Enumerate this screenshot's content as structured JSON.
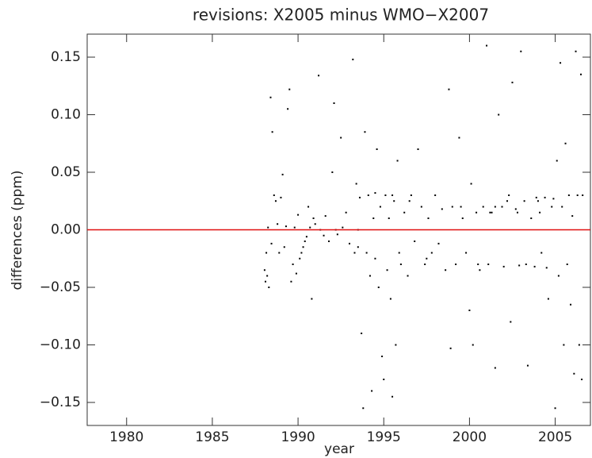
{
  "chart_data": {
    "type": "scatter",
    "title": "revisions: X2005 minus WMO−X2007",
    "x_label": "year",
    "y_label": "differences (ppm)",
    "xlim": [
      1977.7,
      2007.1
    ],
    "ylim": [
      -0.17,
      0.17
    ],
    "xticks": [
      1980,
      1985,
      1990,
      1995,
      2000,
      2005
    ],
    "yticks": [
      {
        "value": -0.15,
        "label": "−0.15"
      },
      {
        "value": -0.1,
        "label": "−0.10"
      },
      {
        "value": -0.05,
        "label": "−0.05"
      },
      {
        "value": 0,
        "label": "0.00"
      },
      0.05,
      {
        "value": 0.1,
        "label": "0.10"
      },
      0.15
    ],
    "color": "#000000",
    "reference_line": {
      "value": 0,
      "color": "#e01010"
    },
    "x": [
      1988.05,
      1988.1,
      1988.15,
      1988.2,
      1988.25,
      1988.3,
      1988.4,
      1988.45,
      1988.5,
      1988.6,
      1988.7,
      1988.8,
      1988.9,
      1989.0,
      1989.1,
      1989.2,
      1989.3,
      1989.4,
      1989.5,
      1989.6,
      1989.7,
      1989.8,
      1989.9,
      1990.0,
      1990.1,
      1990.2,
      1990.3,
      1990.4,
      1990.5,
      1990.6,
      1990.7,
      1990.8,
      1990.9,
      1991.0,
      1991.2,
      1991.3,
      1991.5,
      1991.6,
      1991.8,
      1992.0,
      1992.1,
      1992.2,
      1992.3,
      1992.5,
      1992.6,
      1992.8,
      1993.0,
      1993.2,
      1993.3,
      1993.4,
      1993.5,
      1993.6,
      1993.7,
      1993.8,
      1993.9,
      1994.0,
      1994.1,
      1994.2,
      1994.3,
      1994.4,
      1994.5,
      1994.6,
      1994.7,
      1994.8,
      1994.9,
      1995.0,
      1995.1,
      1995.2,
      1995.3,
      1995.4,
      1995.5,
      1995.6,
      1995.7,
      1995.8,
      1995.9,
      1996.0,
      1996.2,
      1996.4,
      1996.6,
      1996.8,
      1997.0,
      1997.2,
      1997.4,
      1997.6,
      1997.8,
      1998.0,
      1998.2,
      1998.4,
      1998.6,
      1998.8,
      1998.9,
      1999.0,
      1999.2,
      1999.4,
      1999.6,
      1999.8,
      2000.0,
      2000.1,
      2000.2,
      2000.4,
      2000.6,
      2000.8,
      2001.0,
      2001.1,
      2001.3,
      2001.5,
      2001.7,
      2001.9,
      2002.0,
      2002.2,
      2002.4,
      2002.5,
      2002.7,
      2002.9,
      2003.0,
      2003.2,
      2003.4,
      2003.6,
      2003.8,
      2004.0,
      2004.2,
      2004.4,
      2004.6,
      2004.8,
      2005.0,
      2005.1,
      2005.2,
      2005.3,
      2005.4,
      2005.5,
      2005.6,
      2005.7,
      2005.8,
      2005.9,
      2006.0,
      2006.1,
      2006.2,
      2006.3,
      2006.4,
      2006.5,
      2006.55,
      2006.6,
      1996.5,
      1997.5,
      1999.5,
      2000.5,
      2001.5,
      2002.3,
      2003.3,
      2003.9,
      2004.5,
      2004.9,
      1995.5,
      1994.5,
      1993.5,
      2001.2,
      2002.8,
      2004.1
    ],
    "y": [
      -0.035,
      -0.045,
      -0.02,
      -0.04,
      0.002,
      -0.05,
      0.115,
      -0.012,
      0.085,
      0.03,
      0.025,
      0.005,
      -0.02,
      0.028,
      0.048,
      -0.015,
      0.003,
      0.105,
      0.122,
      -0.045,
      -0.03,
      0.002,
      -0.038,
      0.013,
      -0.025,
      -0.02,
      -0.015,
      -0.01,
      -0.006,
      0.02,
      0.002,
      -0.06,
      0.01,
      0.005,
      0.134,
      0.0,
      -0.005,
      0.012,
      -0.01,
      0.05,
      0.11,
      0.0,
      -0.004,
      0.08,
      0.002,
      0.015,
      -0.012,
      0.148,
      -0.02,
      0.04,
      -0.015,
      0.028,
      -0.09,
      -0.155,
      0.085,
      -0.02,
      0.03,
      -0.04,
      -0.14,
      0.01,
      -0.025,
      0.07,
      -0.05,
      0.02,
      -0.11,
      -0.13,
      0.03,
      -0.035,
      0.01,
      -0.06,
      -0.145,
      0.025,
      -0.1,
      0.06,
      -0.02,
      -0.03,
      0.015,
      -0.04,
      0.03,
      -0.01,
      0.07,
      0.02,
      -0.03,
      0.01,
      -0.02,
      0.03,
      -0.012,
      0.018,
      -0.035,
      0.122,
      -0.103,
      0.02,
      -0.03,
      0.08,
      0.01,
      -0.02,
      -0.07,
      0.04,
      -0.1,
      0.015,
      -0.035,
      0.02,
      0.16,
      -0.03,
      0.015,
      -0.12,
      0.1,
      0.02,
      -0.032,
      0.025,
      -0.08,
      0.128,
      0.018,
      -0.031,
      0.155,
      0.025,
      -0.118,
      0.01,
      -0.032,
      0.025,
      -0.02,
      0.028,
      -0.06,
      0.02,
      -0.155,
      0.06,
      -0.04,
      0.145,
      0.02,
      -0.1,
      0.075,
      -0.03,
      0.03,
      -0.065,
      0.012,
      -0.125,
      0.155,
      0.03,
      -0.1,
      0.135,
      -0.13,
      0.03,
      0.025,
      -0.025,
      0.02,
      -0.03,
      0.02,
      0.03,
      -0.03,
      0.028,
      -0.033,
      0.027,
      0.03,
      0.032,
      0.0,
      0.015,
      0.015,
      0.015
    ]
  }
}
